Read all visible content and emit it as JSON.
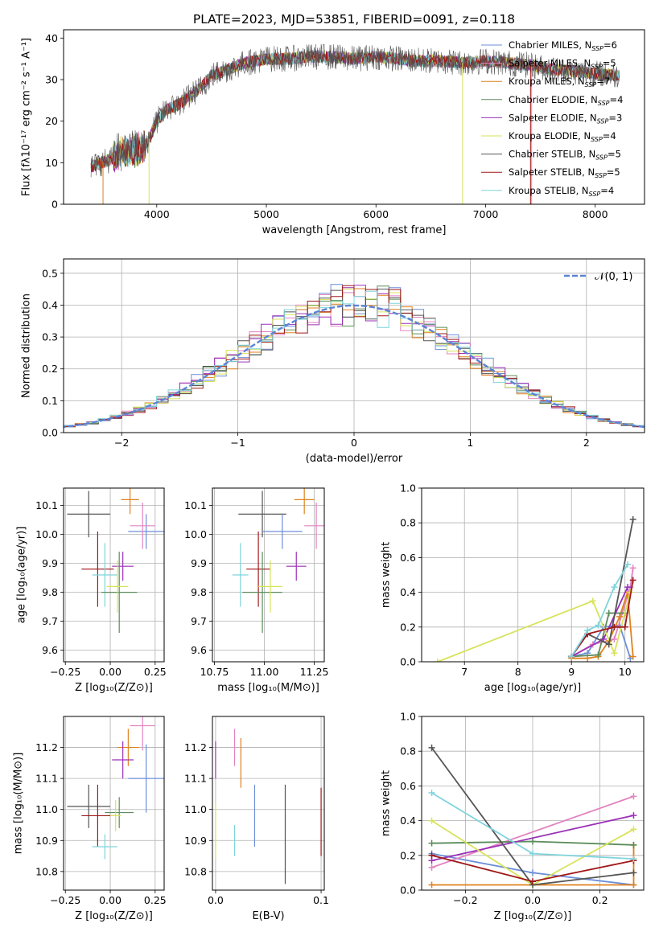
{
  "figure": {
    "title": "PLATE=2023, MJD=53851, FIBERID=0091, z=0.118"
  },
  "chart_data": [
    {
      "id": "spectrum",
      "type": "line",
      "xlabel": "wavelength [Angstrom, rest frame]",
      "ylabel": "Flux [fλ10⁻¹⁷ erg cm⁻² s⁻¹ A⁻¹]",
      "xlim": [
        3150,
        8450
      ],
      "ylim": [
        0,
        42
      ],
      "xticks": [
        4000,
        5000,
        6000,
        7000,
        8000
      ],
      "yticks": [
        0,
        10,
        20,
        30,
        40
      ],
      "grid": false,
      "legend_position": "top-right",
      "continuum": {
        "x": [
          3400,
          3500,
          3600,
          3700,
          3800,
          3900,
          4000,
          4100,
          4200,
          4300,
          4400,
          4500,
          4600,
          4700,
          4800,
          4900,
          5000,
          5200,
          5400,
          5600,
          5800,
          6000,
          6200,
          6400,
          6600,
          6800,
          7000,
          7200,
          7400,
          7600,
          7800,
          8000,
          8200
        ],
        "y": [
          9,
          10,
          11,
          12.5,
          13,
          14,
          20,
          23,
          24,
          26,
          28,
          31,
          32,
          33,
          34,
          34.5,
          35,
          35,
          35.5,
          35.5,
          35,
          35.5,
          35,
          34.5,
          34.5,
          34,
          34.5,
          34,
          33.5,
          32.5,
          32,
          31.5,
          31
        ]
      },
      "series": [
        {
          "name": "Chabrier MILES, N",
          "sub": "SSP",
          "suffix": "=6",
          "color": "#6c8ed8"
        },
        {
          "name": "Salpeter MILES, N",
          "sub": "SSP",
          "suffix": "=5",
          "color": "#e283c0"
        },
        {
          "name": "Kroupa MILES, N",
          "sub": "SSP",
          "suffix": "=7",
          "color": "#e0821e"
        },
        {
          "name": "Chabrier ELODIE, N",
          "sub": "SSP",
          "suffix": "=4",
          "color": "#5c8c5c"
        },
        {
          "name": "Salpeter ELODIE, N",
          "sub": "SSP",
          "suffix": "=3",
          "color": "#9b30b8"
        },
        {
          "name": "Kroupa ELODIE, N",
          "sub": "SSP",
          "suffix": "=4",
          "color": "#d7e35a"
        },
        {
          "name": "Chabrier STELIB, N",
          "sub": "SSP",
          "suffix": "=5",
          "color": "#555555"
        },
        {
          "name": "Salpeter STELIB, N",
          "sub": "SSP",
          "suffix": "=5",
          "color": "#a01818"
        },
        {
          "name": "Kroupa STELIB, N",
          "sub": "SSP",
          "suffix": "=4",
          "color": "#7fd4dc"
        }
      ]
    },
    {
      "id": "residuals",
      "type": "step",
      "xlabel": "(data-model)/error",
      "ylabel": "Normed distribution",
      "xlim": [
        -2.5,
        2.5
      ],
      "ylim": [
        0,
        0.545
      ],
      "xticks": [
        -2,
        -1,
        0,
        1,
        2
      ],
      "xtick_labels": [
        "−2",
        "−1",
        "0",
        "1",
        "2"
      ],
      "yticks": [
        0,
        0.1,
        0.2,
        0.3,
        0.4,
        0.5
      ],
      "ytick_labels": [
        "0.0",
        "0.1",
        "0.2",
        "0.3",
        "0.4",
        "0.5"
      ],
      "grid": true,
      "legend_position": "top-right",
      "reference": {
        "label": "𝒩(0, 1)",
        "color": "#5b84d6",
        "style": "dashed"
      },
      "bin_width": 0.1
    },
    {
      "id": "age-vs-Z",
      "type": "errorbar",
      "xlabel": "Z [log₁₀(Z/Z⊙)]",
      "ylabel": "age [log₁₀(age/yr)]",
      "xlim": [
        -0.26,
        0.3
      ],
      "ylim": [
        9.56,
        10.16
      ],
      "xticks": [
        -0.25,
        0,
        0.25
      ],
      "xtick_labels": [
        "−0.25",
        "0.00",
        "0.25"
      ],
      "yticks": [
        9.6,
        9.7,
        9.8,
        9.9,
        10.0,
        10.1
      ],
      "ytick_labels": [
        "9.6",
        "9.7",
        "9.8",
        "9.9",
        "10.0",
        "10.1"
      ],
      "grid": true,
      "points": [
        {
          "x": -0.12,
          "xerr": 0.12,
          "y": 10.07,
          "yerr": 0.08,
          "color": "#555555"
        },
        {
          "x": 0.11,
          "xerr": 0.05,
          "y": 10.12,
          "yerr": 0.05,
          "color": "#e0821e"
        },
        {
          "x": 0.2,
          "xerr": 0.1,
          "y": 10.01,
          "yerr": 0.06,
          "color": "#6c8ed8"
        },
        {
          "x": 0.18,
          "xerr": 0.07,
          "y": 10.03,
          "yerr": 0.08,
          "color": "#e283c0"
        },
        {
          "x": -0.07,
          "xerr": 0.09,
          "y": 9.88,
          "yerr": 0.13,
          "color": "#a01818"
        },
        {
          "x": 0.07,
          "xerr": 0.06,
          "y": 9.89,
          "yerr": 0.05,
          "color": "#9b30b8"
        },
        {
          "x": -0.03,
          "xerr": 0.07,
          "y": 9.86,
          "yerr": 0.11,
          "color": "#7fd4dc"
        },
        {
          "x": 0.05,
          "xerr": 0.1,
          "y": 9.8,
          "yerr": 0.14,
          "color": "#5c8c5c"
        },
        {
          "x": 0.04,
          "xerr": 0.06,
          "y": 9.82,
          "yerr": 0.09,
          "color": "#d7e35a"
        }
      ]
    },
    {
      "id": "age-vs-mass",
      "type": "errorbar",
      "xlabel": "mass [log₁₀(M/M⊙)]",
      "ylabel": "",
      "xlim": [
        10.74,
        11.3
      ],
      "ylim": [
        9.56,
        10.16
      ],
      "xticks": [
        10.75,
        11.0,
        11.25
      ],
      "xtick_labels": [
        "10.75",
        "11.00",
        "11.25"
      ],
      "yticks": [
        9.6,
        9.7,
        9.8,
        9.9,
        10.0,
        10.1
      ],
      "ytick_labels": [
        "9.6",
        "9.7",
        "9.8",
        "9.9",
        "10.0",
        "10.1"
      ],
      "grid": true,
      "points": [
        {
          "x": 10.99,
          "xerr": 0.12,
          "y": 10.07,
          "yerr": 0.08,
          "color": "#555555"
        },
        {
          "x": 11.2,
          "xerr": 0.05,
          "y": 10.12,
          "yerr": 0.05,
          "color": "#e0821e"
        },
        {
          "x": 11.09,
          "xerr": 0.1,
          "y": 10.01,
          "yerr": 0.06,
          "color": "#6c8ed8"
        },
        {
          "x": 11.26,
          "xerr": 0.06,
          "y": 10.03,
          "yerr": 0.08,
          "color": "#e283c0"
        },
        {
          "x": 10.97,
          "xerr": 0.06,
          "y": 9.88,
          "yerr": 0.13,
          "color": "#a01818"
        },
        {
          "x": 11.16,
          "xerr": 0.05,
          "y": 9.89,
          "yerr": 0.05,
          "color": "#9b30b8"
        },
        {
          "x": 10.88,
          "xerr": 0.04,
          "y": 9.86,
          "yerr": 0.11,
          "color": "#7fd4dc"
        },
        {
          "x": 10.99,
          "xerr": 0.1,
          "y": 9.8,
          "yerr": 0.14,
          "color": "#5c8c5c"
        },
        {
          "x": 11.03,
          "xerr": 0.06,
          "y": 9.82,
          "yerr": 0.09,
          "color": "#d7e35a"
        }
      ]
    },
    {
      "id": "weight-vs-age",
      "type": "line",
      "xlabel": "age [log₁₀(age/yr)]",
      "ylabel": "mass weight",
      "xlim": [
        6.2,
        10.35
      ],
      "ylim": [
        0,
        1
      ],
      "xticks": [
        7,
        8,
        9,
        10
      ],
      "yticks": [
        0,
        0.2,
        0.4,
        0.6,
        0.8,
        1.0
      ],
      "ytick_labels": [
        "0.0",
        "0.2",
        "0.4",
        "0.6",
        "0.8",
        "1.0"
      ],
      "grid": true,
      "series": [
        {
          "color": "#6c8ed8",
          "x": [
            9.0,
            9.3,
            9.6,
            9.9,
            10.1
          ],
          "y": [
            0.03,
            0.05,
            0.2,
            0.21,
            0.02
          ]
        },
        {
          "color": "#e283c0",
          "x": [
            9.0,
            9.4,
            9.8,
            10.1,
            10.15
          ],
          "y": [
            0.03,
            0.1,
            0.13,
            0.43,
            0.54
          ]
        },
        {
          "color": "#e0821e",
          "x": [
            9.0,
            9.3,
            9.5,
            9.7,
            9.9,
            10.05,
            10.15
          ],
          "y": [
            0.02,
            0.02,
            0.03,
            0.12,
            0.26,
            0.4,
            0.03
          ]
        },
        {
          "color": "#5c8c5c",
          "x": [
            9.0,
            9.5,
            9.7,
            10.0
          ],
          "y": [
            0.03,
            0.04,
            0.28,
            0.28
          ]
        },
        {
          "color": "#9b30b8",
          "x": [
            9.0,
            9.6,
            10.05
          ],
          "y": [
            0.03,
            0.13,
            0.43
          ]
        },
        {
          "color": "#d7e35a",
          "x": [
            6.5,
            9.4,
            9.8,
            10.1
          ],
          "y": [
            0.0,
            0.35,
            0.05,
            0.4
          ]
        },
        {
          "color": "#555555",
          "x": [
            9.0,
            9.3,
            9.7,
            10.15
          ],
          "y": [
            0.03,
            0.16,
            0.1,
            0.82
          ]
        },
        {
          "color": "#a01818",
          "x": [
            9.0,
            9.3,
            9.8,
            10.0,
            10.15
          ],
          "y": [
            0.03,
            0.16,
            0.2,
            0.2,
            0.47
          ]
        },
        {
          "color": "#7fd4dc",
          "x": [
            9.0,
            9.3,
            9.5,
            9.8,
            10.05
          ],
          "y": [
            0.03,
            0.18,
            0.21,
            0.43,
            0.56
          ]
        }
      ]
    },
    {
      "id": "mass-vs-Z",
      "type": "errorbar",
      "xlabel": "Z [log₁₀(Z/Z⊙)]",
      "ylabel": "mass [log₁₀(M/M⊙)]",
      "xlim": [
        -0.26,
        0.3
      ],
      "ylim": [
        10.74,
        11.3
      ],
      "xticks": [
        -0.25,
        0,
        0.25
      ],
      "xtick_labels": [
        "−0.25",
        "0.00",
        "0.25"
      ],
      "yticks": [
        10.8,
        10.9,
        11.0,
        11.1,
        11.2
      ],
      "ytick_labels": [
        "10.8",
        "10.9",
        "11.0",
        "11.1",
        "11.2"
      ],
      "grid": true,
      "points": [
        {
          "x": -0.12,
          "xerr": 0.12,
          "y": 11.01,
          "yerr": 0.07,
          "color": "#555555"
        },
        {
          "x": 0.05,
          "xerr": 0.08,
          "y": 10.99,
          "yerr": 0.05,
          "color": "#5c8c5c"
        },
        {
          "x": 0.1,
          "xerr": 0.06,
          "y": 11.2,
          "yerr": 0.06,
          "color": "#e0821e"
        },
        {
          "x": 0.2,
          "xerr": 0.1,
          "y": 11.1,
          "yerr": 0.11,
          "color": "#6c8ed8"
        },
        {
          "x": 0.18,
          "xerr": 0.07,
          "y": 11.27,
          "yerr": 0.08,
          "color": "#e283c0"
        },
        {
          "x": -0.07,
          "xerr": 0.09,
          "y": 10.98,
          "yerr": 0.1,
          "color": "#a01818"
        },
        {
          "x": 0.07,
          "xerr": 0.06,
          "y": 11.16,
          "yerr": 0.06,
          "color": "#9b30b8"
        },
        {
          "x": -0.03,
          "xerr": 0.07,
          "y": 10.88,
          "yerr": 0.04,
          "color": "#7fd4dc"
        },
        {
          "x": 0.03,
          "xerr": 0.03,
          "y": 10.98,
          "yerr": 0.05,
          "color": "#d7e35a"
        }
      ]
    },
    {
      "id": "mass-vs-EBV",
      "type": "errorbar",
      "xlabel": "E(B-V)",
      "ylabel": "",
      "xlim": [
        -0.003,
        0.103
      ],
      "ylim": [
        10.74,
        11.3
      ],
      "xticks": [
        0,
        0.1
      ],
      "xtick_labels": [
        "0.0",
        "0.1"
      ],
      "yticks": [
        10.8,
        10.9,
        11.0,
        11.1,
        11.2
      ],
      "ytick_labels": [
        "10.8",
        "10.9",
        "11.0",
        "11.1",
        "11.2"
      ],
      "grid": true,
      "points": [
        {
          "x": 0.0,
          "y": 11.16,
          "yerr": 0.06,
          "color": "#9b30b8"
        },
        {
          "x": 0.0,
          "y": 10.93,
          "yerr": 0.09,
          "color": "#d7e35a"
        },
        {
          "x": 0.018,
          "y": 11.2,
          "yerr": 0.06,
          "color": "#e283c0"
        },
        {
          "x": 0.018,
          "y": 10.9,
          "yerr": 0.05,
          "color": "#7fd4dc"
        },
        {
          "x": 0.024,
          "y": 11.15,
          "yerr": 0.08,
          "color": "#e0821e"
        },
        {
          "x": 0.037,
          "y": 10.98,
          "yerr": 0.1,
          "color": "#6c8ed8"
        },
        {
          "x": 0.066,
          "y": 10.92,
          "yerr": 0.16,
          "color": "#555555"
        },
        {
          "x": 0.1,
          "y": 10.96,
          "yerr": 0.11,
          "color": "#a01818"
        }
      ]
    },
    {
      "id": "weight-vs-Z",
      "type": "line",
      "xlabel": "Z [log₁₀(Z/Z⊙)]",
      "ylabel": "mass weight",
      "xlim": [
        -0.33,
        0.33
      ],
      "ylim": [
        0,
        1
      ],
      "xticks": [
        -0.2,
        0,
        0.2
      ],
      "xtick_labels": [
        "−0.2",
        "0.0",
        "0.2"
      ],
      "yticks": [
        0,
        0.2,
        0.4,
        0.6,
        0.8,
        1.0
      ],
      "ytick_labels": [
        "0.0",
        "0.2",
        "0.4",
        "0.6",
        "0.8",
        "1.0"
      ],
      "grid": true,
      "series": [
        {
          "color": "#6c8ed8",
          "x": [
            -0.3,
            0.0,
            0.3
          ],
          "y": [
            0.21,
            0.1,
            0.03
          ]
        },
        {
          "color": "#e283c0",
          "x": [
            -0.3,
            0.3
          ],
          "y": [
            0.13,
            0.54
          ]
        },
        {
          "color": "#e0821e",
          "x": [
            -0.3,
            0.3,
            0.3
          ],
          "y": [
            0.03,
            0.03,
            0.26
          ]
        },
        {
          "color": "#5c8c5c",
          "x": [
            -0.3,
            0.0,
            0.3
          ],
          "y": [
            0.27,
            0.28,
            0.26
          ]
        },
        {
          "color": "#9b30b8",
          "x": [
            -0.3,
            0.3
          ],
          "y": [
            0.17,
            0.43
          ]
        },
        {
          "color": "#d7e35a",
          "x": [
            -0.3,
            0.0,
            0.3
          ],
          "y": [
            0.4,
            0.03,
            0.35
          ]
        },
        {
          "color": "#555555",
          "x": [
            -0.3,
            0.0,
            0.3
          ],
          "y": [
            0.82,
            0.03,
            0.1
          ]
        },
        {
          "color": "#a01818",
          "x": [
            -0.3,
            0.0,
            0.3
          ],
          "y": [
            0.2,
            0.05,
            0.17
          ]
        },
        {
          "color": "#7fd4dc",
          "x": [
            -0.3,
            0.0,
            0.3
          ],
          "y": [
            0.56,
            0.21,
            0.18
          ]
        }
      ]
    }
  ]
}
